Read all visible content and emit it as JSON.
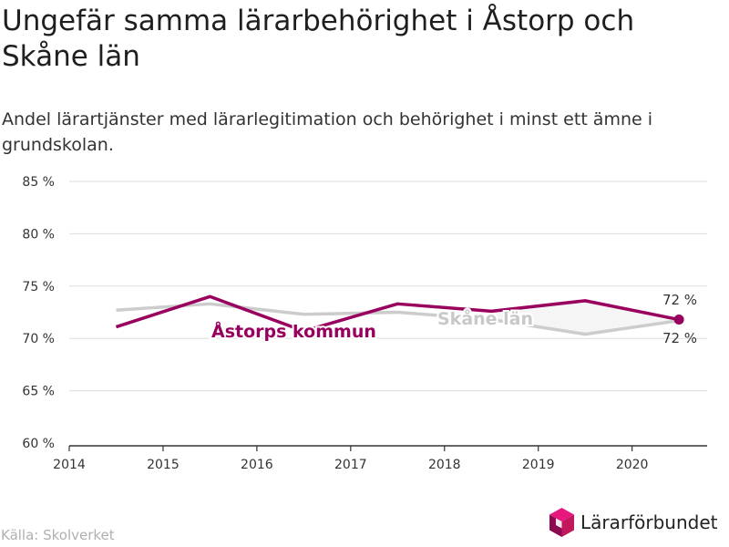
{
  "title": "Ungefär samma lärarbehörighet i Åstorp och Skåne län",
  "subtitle": "Andel lärartjänster med lärarlegitimation och behörighet i minst ett ämne i grundskolan.",
  "source": "Källa: Skolverket",
  "brand": {
    "name": "Lärarförbundet",
    "logo_icon": "cube-logo-icon"
  },
  "chart_data": {
    "type": "line",
    "x": [
      2014.5,
      2015.5,
      2016.5,
      2017.5,
      2018.5,
      2019.5,
      2020.5
    ],
    "xlim": [
      2014,
      2020.8
    ],
    "ylim": [
      60,
      85
    ],
    "x_ticks": [
      "2014",
      "2015",
      "2016",
      "2017",
      "2018",
      "2019",
      "2020"
    ],
    "y_ticks": [
      "60 %",
      "65 %",
      "70 %",
      "75 %",
      "80 %",
      "85 %"
    ],
    "grid": true,
    "series": [
      {
        "name": "Skåne län",
        "color": "#cccccc",
        "values": [
          72.7,
          73.3,
          72.3,
          72.5,
          71.8,
          70.4,
          71.7
        ],
        "end_label": "72 %"
      },
      {
        "name": "Åstorps kommun",
        "color": "#99005e",
        "values": [
          71.1,
          74.0,
          70.7,
          73.3,
          72.6,
          73.6,
          71.8
        ],
        "end_label": "72 %"
      }
    ]
  }
}
